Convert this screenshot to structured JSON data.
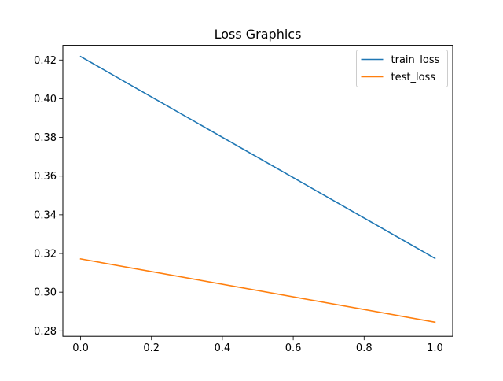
{
  "chart_data": {
    "type": "line",
    "title": "Loss Graphics",
    "xlabel": "",
    "ylabel": "",
    "xlim": [
      -0.05,
      1.05
    ],
    "ylim": [
      0.2772,
      0.4276
    ],
    "grid": false,
    "legend_position": "top-right",
    "x_ticks": [
      0.0,
      0.2,
      0.4,
      0.6,
      0.8,
      1.0
    ],
    "x_tick_labels": [
      "0.0",
      "0.2",
      "0.4",
      "0.6",
      "0.8",
      "1.0"
    ],
    "y_ticks": [
      0.28,
      0.3,
      0.32,
      0.34,
      0.36,
      0.38,
      0.4,
      0.42
    ],
    "y_tick_labels": [
      "0.28",
      "0.30",
      "0.32",
      "0.34",
      "0.36",
      "0.38",
      "0.40",
      "0.42"
    ],
    "series": [
      {
        "name": "train_loss",
        "color": "#1f77b4",
        "x": [
          0,
          1
        ],
        "values": [
          0.4218,
          0.3175
        ]
      },
      {
        "name": "test_loss",
        "color": "#ff7f0e",
        "x": [
          0,
          1
        ],
        "values": [
          0.3172,
          0.2845
        ]
      }
    ]
  }
}
